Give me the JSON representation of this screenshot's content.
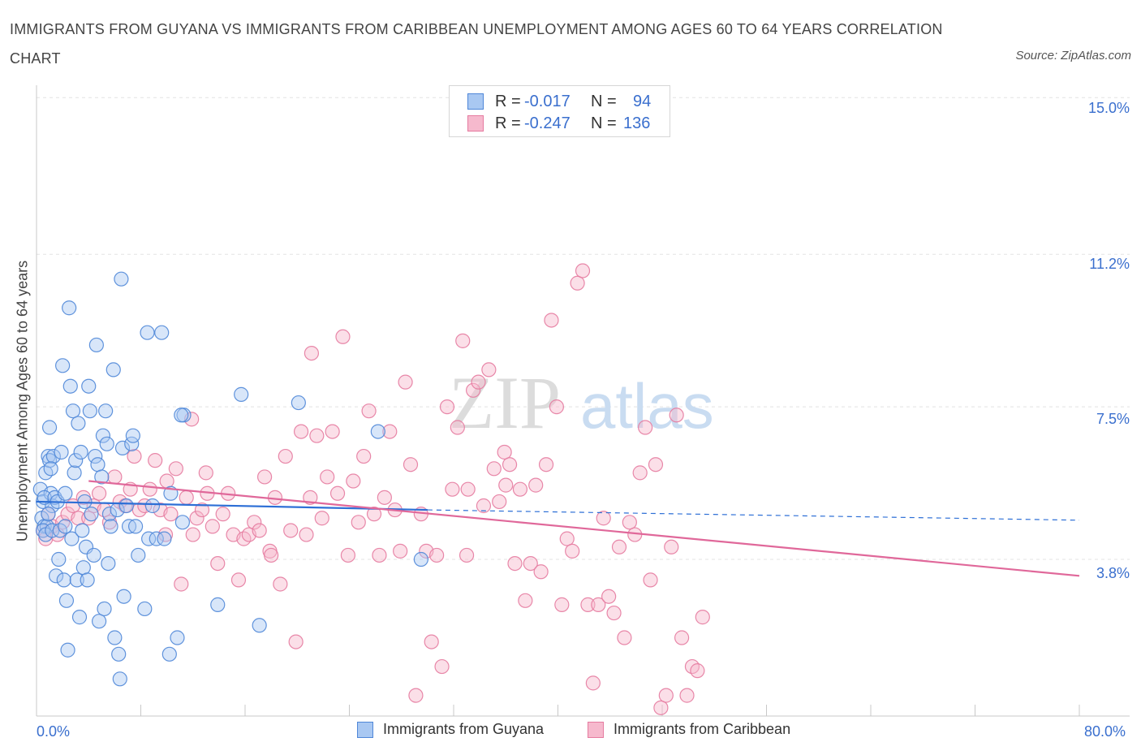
{
  "title": "IMMIGRANTS FROM GUYANA VS IMMIGRANTS FROM CARIBBEAN UNEMPLOYMENT AMONG AGES 60 TO 64 YEARS CORRELATION CHART",
  "source": "Source: ZipAtlas.com",
  "watermark": {
    "zip": "ZIP",
    "atlas": "atlas"
  },
  "legend_stats": [
    {
      "r_label": "R =",
      "r_value": "-0.017",
      "n_label": "N =",
      "n_value": "94"
    },
    {
      "r_label": "R =",
      "r_value": "-0.247",
      "n_label": "N =",
      "n_value": "136"
    }
  ],
  "colors": {
    "guyana_fill": "#a9c8f2",
    "guyana_stroke": "#4f87d8",
    "guyana_line": "#2d6fd6",
    "caribbean_fill": "#f6b9cd",
    "caribbean_stroke": "#e57ba0",
    "caribbean_line": "#e0689a",
    "tick_label": "#3a6fce",
    "grid": "#e3e3e3"
  },
  "chart_data": {
    "type": "scatter",
    "title": "IMMIGRANTS FROM GUYANA VS IMMIGRANTS FROM CARIBBEAN UNEMPLOYMENT AMONG AGES 60 TO 64 YEARS CORRELATION CHART",
    "xlabel": "",
    "ylabel": "Unemployment Among Ages 60 to 64 years",
    "xlim": [
      0,
      80
    ],
    "ylim": [
      0,
      15.3
    ],
    "x_tick_labels": [
      "0.0%",
      "80.0%"
    ],
    "y_ticks": [
      3.8,
      7.5,
      11.2,
      15.0
    ],
    "y_tick_labels": [
      "3.8%",
      "7.5%",
      "11.2%",
      "15.0%"
    ],
    "grid": true,
    "legend_position": "bottom",
    "series": [
      {
        "name": "Immigrants from Guyana",
        "r": -0.017,
        "n": 94,
        "trend": {
          "x": [
            0,
            30
          ],
          "y": [
            5.2,
            5.0
          ],
          "dashed_extension": {
            "x": [
              30,
              80
            ],
            "y": [
              5.0,
              4.75
            ]
          }
        },
        "points": [
          [
            0.3,
            5.5
          ],
          [
            0.4,
            4.8
          ],
          [
            0.5,
            5.2
          ],
          [
            0.6,
            4.6
          ],
          [
            0.7,
            5.9
          ],
          [
            0.8,
            4.6
          ],
          [
            0.9,
            6.3
          ],
          [
            1.0,
            7.0
          ],
          [
            1.1,
            5.4
          ],
          [
            1.2,
            5.1
          ],
          [
            0.5,
            4.5
          ],
          [
            0.6,
            5.3
          ],
          [
            0.7,
            4.4
          ],
          [
            0.9,
            4.9
          ],
          [
            1.0,
            6.2
          ],
          [
            1.2,
            4.5
          ],
          [
            1.3,
            6.3
          ],
          [
            1.4,
            5.3
          ],
          [
            1.5,
            3.4
          ],
          [
            1.6,
            5.2
          ],
          [
            1.7,
            3.8
          ],
          [
            1.8,
            4.5
          ],
          [
            1.9,
            6.4
          ],
          [
            2.0,
            8.5
          ],
          [
            2.1,
            3.3
          ],
          [
            2.2,
            4.6
          ],
          [
            2.3,
            2.8
          ],
          [
            2.4,
            1.6
          ],
          [
            2.5,
            9.9
          ],
          [
            2.6,
            8.0
          ],
          [
            2.7,
            4.3
          ],
          [
            2.8,
            7.4
          ],
          [
            2.9,
            5.9
          ],
          [
            3.0,
            6.2
          ],
          [
            3.1,
            3.3
          ],
          [
            3.2,
            7.1
          ],
          [
            3.3,
            2.4
          ],
          [
            3.4,
            6.4
          ],
          [
            3.5,
            4.5
          ],
          [
            3.6,
            3.6
          ],
          [
            3.8,
            4.1
          ],
          [
            3.9,
            3.3
          ],
          [
            4.0,
            8.0
          ],
          [
            4.1,
            7.4
          ],
          [
            4.2,
            4.9
          ],
          [
            4.4,
            3.9
          ],
          [
            4.5,
            6.3
          ],
          [
            4.6,
            9.0
          ],
          [
            4.7,
            6.1
          ],
          [
            4.8,
            2.3
          ],
          [
            5.0,
            5.8
          ],
          [
            5.1,
            6.8
          ],
          [
            5.2,
            2.6
          ],
          [
            5.3,
            7.4
          ],
          [
            5.4,
            6.6
          ],
          [
            5.5,
            3.7
          ],
          [
            5.6,
            4.9
          ],
          [
            5.7,
            4.6
          ],
          [
            5.9,
            8.4
          ],
          [
            6.0,
            1.9
          ],
          [
            6.2,
            5.0
          ],
          [
            6.3,
            1.5
          ],
          [
            6.4,
            0.9
          ],
          [
            6.5,
            10.6
          ],
          [
            6.6,
            6.5
          ],
          [
            6.7,
            2.9
          ],
          [
            6.9,
            5.1
          ],
          [
            7.1,
            4.6
          ],
          [
            7.3,
            6.6
          ],
          [
            7.4,
            6.8
          ],
          [
            7.6,
            4.6
          ],
          [
            7.8,
            3.9
          ],
          [
            8.3,
            2.6
          ],
          [
            8.5,
            9.3
          ],
          [
            8.6,
            4.3
          ],
          [
            8.9,
            5.1
          ],
          [
            9.2,
            4.3
          ],
          [
            9.6,
            9.3
          ],
          [
            9.8,
            4.3
          ],
          [
            10.2,
            1.5
          ],
          [
            10.3,
            5.4
          ],
          [
            10.8,
            1.9
          ],
          [
            11.2,
            4.7
          ],
          [
            11.3,
            7.3
          ],
          [
            11.1,
            7.3
          ],
          [
            13.9,
            2.7
          ],
          [
            15.7,
            7.8
          ],
          [
            17.1,
            2.2
          ],
          [
            20.1,
            7.6
          ],
          [
            26.2,
            6.9
          ],
          [
            29.5,
            3.8
          ],
          [
            3.7,
            5.2
          ],
          [
            1.1,
            6.0
          ],
          [
            2.2,
            5.4
          ]
        ]
      },
      {
        "name": "Immigrants from Caribbean",
        "r": -0.247,
        "n": 136,
        "trend": {
          "x": [
            4,
            80
          ],
          "y": [
            5.7,
            3.4
          ]
        },
        "points": [
          [
            0.5,
            4.5
          ],
          [
            0.7,
            4.3
          ],
          [
            0.9,
            4.9
          ],
          [
            1.2,
            4.6
          ],
          [
            1.6,
            4.4
          ],
          [
            2.0,
            4.7
          ],
          [
            2.4,
            4.9
          ],
          [
            2.8,
            5.1
          ],
          [
            3.2,
            4.8
          ],
          [
            3.6,
            5.3
          ],
          [
            4.0,
            4.8
          ],
          [
            4.4,
            5.1
          ],
          [
            4.8,
            5.4
          ],
          [
            5.2,
            5.0
          ],
          [
            5.6,
            4.7
          ],
          [
            6.0,
            5.8
          ],
          [
            6.4,
            5.2
          ],
          [
            6.8,
            5.1
          ],
          [
            7.2,
            5.5
          ],
          [
            7.5,
            6.3
          ],
          [
            7.9,
            5.0
          ],
          [
            8.3,
            5.1
          ],
          [
            8.7,
            5.5
          ],
          [
            9.1,
            6.2
          ],
          [
            9.5,
            5.0
          ],
          [
            9.9,
            4.4
          ],
          [
            10.3,
            4.9
          ],
          [
            10.7,
            6.0
          ],
          [
            11.1,
            3.2
          ],
          [
            11.5,
            5.3
          ],
          [
            11.9,
            7.2
          ],
          [
            12.3,
            4.8
          ],
          [
            12.7,
            5.0
          ],
          [
            13.1,
            5.4
          ],
          [
            13.5,
            4.6
          ],
          [
            13.9,
            3.7
          ],
          [
            14.3,
            4.9
          ],
          [
            14.7,
            5.4
          ],
          [
            15.1,
            4.4
          ],
          [
            15.5,
            3.3
          ],
          [
            15.9,
            4.3
          ],
          [
            16.3,
            4.4
          ],
          [
            16.7,
            4.7
          ],
          [
            17.1,
            4.5
          ],
          [
            17.5,
            5.8
          ],
          [
            17.9,
            4.0
          ],
          [
            18.3,
            5.3
          ],
          [
            18.7,
            3.2
          ],
          [
            19.1,
            6.3
          ],
          [
            19.5,
            4.5
          ],
          [
            19.9,
            1.8
          ],
          [
            20.3,
            6.9
          ],
          [
            20.7,
            4.4
          ],
          [
            21.1,
            8.8
          ],
          [
            21.5,
            6.8
          ],
          [
            21.9,
            4.8
          ],
          [
            22.3,
            5.8
          ],
          [
            22.7,
            6.9
          ],
          [
            23.1,
            5.4
          ],
          [
            23.5,
            9.2
          ],
          [
            23.9,
            3.9
          ],
          [
            24.3,
            5.7
          ],
          [
            24.7,
            4.7
          ],
          [
            25.1,
            6.3
          ],
          [
            25.5,
            7.4
          ],
          [
            25.9,
            4.9
          ],
          [
            26.3,
            3.9
          ],
          [
            26.7,
            5.3
          ],
          [
            27.1,
            6.9
          ],
          [
            27.5,
            5.0
          ],
          [
            27.9,
            4.0
          ],
          [
            28.3,
            8.1
          ],
          [
            28.7,
            6.1
          ],
          [
            29.1,
            0.5
          ],
          [
            29.5,
            4.9
          ],
          [
            29.9,
            4.0
          ],
          [
            30.3,
            1.8
          ],
          [
            30.7,
            3.9
          ],
          [
            31.1,
            1.2
          ],
          [
            31.5,
            7.5
          ],
          [
            31.9,
            5.5
          ],
          [
            32.3,
            7.0
          ],
          [
            32.7,
            9.1
          ],
          [
            33.1,
            5.5
          ],
          [
            33.5,
            7.9
          ],
          [
            33.9,
            8.1
          ],
          [
            34.3,
            5.1
          ],
          [
            34.7,
            8.4
          ],
          [
            35.1,
            6.0
          ],
          [
            35.5,
            5.2
          ],
          [
            35.9,
            6.4
          ],
          [
            36.3,
            6.1
          ],
          [
            36.7,
            3.7
          ],
          [
            37.1,
            5.5
          ],
          [
            37.5,
            2.8
          ],
          [
            37.9,
            3.7
          ],
          [
            38.3,
            5.6
          ],
          [
            38.7,
            3.5
          ],
          [
            39.1,
            6.1
          ],
          [
            39.5,
            9.6
          ],
          [
            39.9,
            7.5
          ],
          [
            40.3,
            2.7
          ],
          [
            40.7,
            4.3
          ],
          [
            41.1,
            4.0
          ],
          [
            41.5,
            10.5
          ],
          [
            41.9,
            10.8
          ],
          [
            42.3,
            2.7
          ],
          [
            42.7,
            0.8
          ],
          [
            43.1,
            2.7
          ],
          [
            43.5,
            4.8
          ],
          [
            43.9,
            2.9
          ],
          [
            44.3,
            2.5
          ],
          [
            44.7,
            4.1
          ],
          [
            45.1,
            1.9
          ],
          [
            45.5,
            4.7
          ],
          [
            45.9,
            4.4
          ],
          [
            46.3,
            5.9
          ],
          [
            46.7,
            7.0
          ],
          [
            47.1,
            3.3
          ],
          [
            47.5,
            6.1
          ],
          [
            47.9,
            0.2
          ],
          [
            48.3,
            0.5
          ],
          [
            48.7,
            4.1
          ],
          [
            49.1,
            7.3
          ],
          [
            49.5,
            1.9
          ],
          [
            49.9,
            0.5
          ],
          [
            50.3,
            1.2
          ],
          [
            50.7,
            1.1
          ],
          [
            51.1,
            2.4
          ],
          [
            10.0,
            5.7
          ],
          [
            12.0,
            4.4
          ],
          [
            13.0,
            5.9
          ],
          [
            18.0,
            3.9
          ],
          [
            21.0,
            5.3
          ],
          [
            33.0,
            3.9
          ],
          [
            36.0,
            5.6
          ]
        ]
      }
    ]
  },
  "legend_bottom": [
    {
      "label": "Immigrants from Guyana"
    },
    {
      "label": "Immigrants from Caribbean"
    }
  ]
}
